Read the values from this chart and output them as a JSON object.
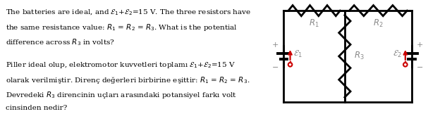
{
  "bg_color": "#ffffff",
  "line_color": "#000000",
  "arrow_color": "#cc0000",
  "label_color": "#888888",
  "plus_minus_color": "#888888",
  "font_size_text": 7.5,
  "font_size_label": 8.5,
  "text_en_line1": "The batteries are ideal, and $\\mathcal{E}_1$+$\\mathcal{E}_2$=15 V. The three resistors have",
  "text_en_line2": "the same resistance value: $R_1$ = $R_2$ = $R_3$. What is the potential",
  "text_en_line3": "difference across $R_3$ in volts?",
  "text_tr_line1": "Piller ideal olup, elektromotor kuvvetleri toplamı $\\mathcal{E}_1$+$\\mathcal{E}_2$=15 V",
  "text_tr_line2": "olarak verilmiştir. Direnç değerleri birbirine eşittir: $R_1$ = $R_2$ = $R_3$.",
  "text_tr_line3": "Devredeki $R_3$ direncinin uçları arasındaki potansiyel farkı volt",
  "text_tr_line4": "cinsinden nedir?"
}
